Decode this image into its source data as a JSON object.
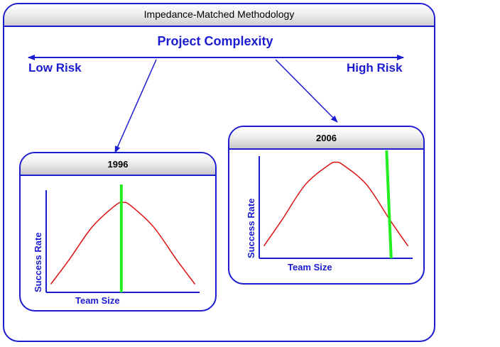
{
  "title": "Impedance-Matched Methodology",
  "heading": "Project Complexity",
  "risk_scale": {
    "low_label": "Low Risk",
    "high_label": "High Risk"
  },
  "colors": {
    "frame": "#1b1bd0",
    "text": "#1b1bd0",
    "curve": "#dd1111",
    "marker": "#22ee22"
  },
  "panels": [
    {
      "title": "1996",
      "xlabel": "Team Size",
      "ylabel": "Success Rate"
    },
    {
      "title": "2006",
      "xlabel": "Team Size",
      "ylabel": "Success Rate"
    }
  ],
  "chart_data": [
    {
      "type": "line",
      "title": "1996",
      "xlabel": "Team Size",
      "ylabel": "Success Rate",
      "xlim": [
        0,
        1
      ],
      "ylim": [
        0,
        1
      ],
      "series": [
        {
          "x": [
            0.03,
            0.15,
            0.3,
            0.45,
            0.5,
            0.55,
            0.7,
            0.85,
            0.97
          ],
          "values": [
            0.08,
            0.32,
            0.64,
            0.85,
            0.88,
            0.85,
            0.64,
            0.32,
            0.08
          ]
        }
      ],
      "marker_x": 0.49
    },
    {
      "type": "line",
      "title": "2006",
      "xlabel": "Team Size",
      "ylabel": "Success Rate",
      "xlim": [
        0,
        1
      ],
      "ylim": [
        0,
        1
      ],
      "series": [
        {
          "x": [
            0.03,
            0.15,
            0.3,
            0.45,
            0.5,
            0.55,
            0.7,
            0.85,
            0.97
          ],
          "values": [
            0.12,
            0.38,
            0.72,
            0.91,
            0.94,
            0.91,
            0.72,
            0.38,
            0.12
          ]
        }
      ],
      "marker_x_top": 0.83,
      "marker_x_bottom": 0.86
    }
  ]
}
